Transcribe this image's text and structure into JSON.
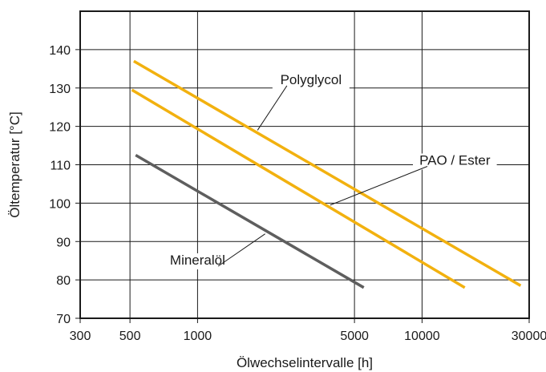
{
  "chart_data": {
    "type": "line",
    "xlabel": "Ölwechselintervalle [h]",
    "ylabel": "Öltemperatur [°C]",
    "x_scale": "log",
    "xlim": [
      300,
      30000
    ],
    "ylim": [
      70,
      150
    ],
    "x_ticks": [
      300,
      500,
      1000,
      5000,
      10000,
      30000
    ],
    "x_tick_labels": [
      "300",
      "500",
      "1000",
      "5000",
      "10000",
      "30000"
    ],
    "y_ticks": [
      70,
      80,
      90,
      100,
      110,
      120,
      130,
      140
    ],
    "y_tick_labels": [
      "70",
      "80",
      "90",
      "100",
      "110",
      "120",
      "130",
      "140"
    ],
    "grid": true,
    "legend": "none",
    "series": [
      {
        "name": "Polyglycol",
        "color": "#f2b10f",
        "points": [
          [
            520,
            137
          ],
          [
            27500,
            78.5
          ]
        ]
      },
      {
        "name": "PAO / Ester",
        "color": "#f2b10f",
        "points": [
          [
            510,
            129.5
          ],
          [
            15500,
            78
          ]
        ]
      },
      {
        "name": "Mineralöl",
        "color": "#5e5e5e",
        "points": [
          [
            530,
            112.5
          ],
          [
            5500,
            78
          ]
        ]
      }
    ],
    "annotations": [
      {
        "text": "Polyglycol",
        "series": "Polyglycol",
        "label_at": [
          3200,
          131
        ],
        "pointer_to": [
          1850,
          119
        ]
      },
      {
        "text": "PAO / Ester",
        "series": "PAO / Ester",
        "label_at": [
          14000,
          110
        ],
        "pointer_to": [
          3900,
          99.5
        ]
      },
      {
        "text": "Mineralöl",
        "series": "Mineralöl",
        "label_at": [
          1000,
          84
        ],
        "pointer_to": [
          2000,
          92
        ]
      }
    ]
  }
}
